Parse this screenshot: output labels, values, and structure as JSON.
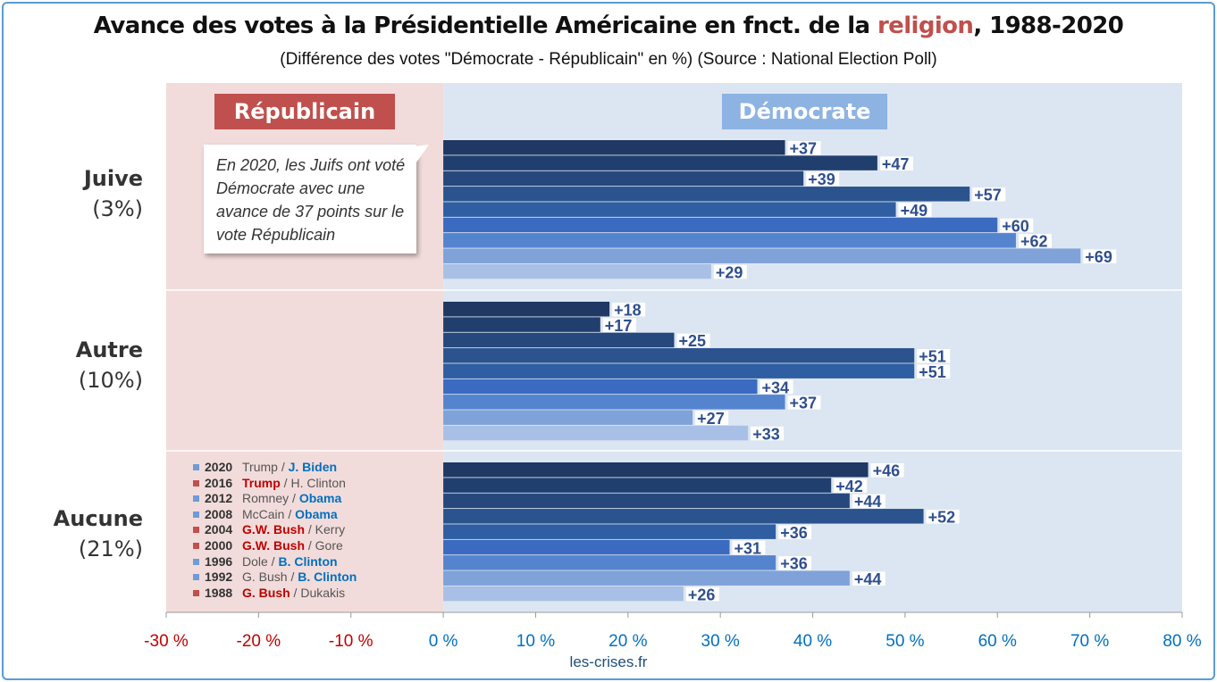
{
  "title_part1": "Avance des votes à la Présidentielle Américaine en fnct. de la ",
  "title_highlight": "religion",
  "title_part2": ", 1988-2020",
  "subtitle": "(Différence des votes \"Démocrate - Républicain\" en %) (Source : National Election Poll)",
  "tag_republicain": "Républicain",
  "tag_democrate": "Démocrate",
  "callout": "En 2020, les Juifs ont voté Démocrate avec une avance de 37 points sur le vote Républicain",
  "footer": "les-crises.fr",
  "colors": {
    "rep_bg": "#f2dcdb",
    "dem_bg": "#dce6f2",
    "rep_tag": "#c0504d",
    "dem_tag": "#8db3e2",
    "label_text": "#2f4f8f",
    "axis_neg": "#c00000",
    "axis_pos": "#0070c0",
    "bars": [
      "#1f3864",
      "#213f6e",
      "#26487c",
      "#2b538e",
      "#2f5ea2",
      "#3a6bc0",
      "#5584cf",
      "#7fa2d8",
      "#a9c0e6"
    ]
  },
  "legend": [
    {
      "year": "2020",
      "rep": "Trump",
      "dem": "J. Biden",
      "winner": "dem"
    },
    {
      "year": "2016",
      "rep": "Trump",
      "dem": "H. Clinton",
      "winner": "rep"
    },
    {
      "year": "2012",
      "rep": "Romney",
      "dem": "Obama",
      "winner": "dem"
    },
    {
      "year": "2008",
      "rep": "McCain",
      "dem": "Obama",
      "winner": "dem"
    },
    {
      "year": "2004",
      "rep": "G.W. Bush",
      "dem": "Kerry",
      "winner": "rep"
    },
    {
      "year": "2000",
      "rep": "G.W. Bush",
      "dem": "Gore",
      "winner": "rep"
    },
    {
      "year": "1996",
      "rep": "Dole",
      "dem": "B. Clinton",
      "winner": "dem"
    },
    {
      "year": "1992",
      "rep": "G. Bush",
      "dem": "B. Clinton",
      "winner": "dem"
    },
    {
      "year": "1988",
      "rep": "G. Bush",
      "dem": "Dukakis",
      "winner": "rep"
    }
  ],
  "chart_data": {
    "type": "bar",
    "orientation": "horizontal",
    "xlim": [
      -30,
      80
    ],
    "xticks": [
      -30,
      -20,
      -10,
      0,
      10,
      20,
      30,
      40,
      50,
      60,
      70,
      80
    ],
    "xtick_labels": [
      "-30 %",
      "-20 %",
      "-10 %",
      "0 %",
      "10 %",
      "20 %",
      "30 %",
      "40 %",
      "50 %",
      "60 %",
      "70 %",
      "80 %"
    ],
    "years": [
      "2020",
      "2016",
      "2012",
      "2008",
      "2004",
      "2000",
      "1996",
      "1992",
      "1988"
    ],
    "groups": [
      {
        "name": "Juive",
        "share": "(3%)",
        "values": [
          37,
          47,
          39,
          57,
          49,
          60,
          62,
          69,
          29
        ]
      },
      {
        "name": "Autre",
        "share": "(10%)",
        "values": [
          18,
          17,
          25,
          51,
          51,
          34,
          37,
          27,
          33
        ]
      },
      {
        "name": "Aucune",
        "share": "(21%)",
        "values": [
          46,
          42,
          44,
          52,
          36,
          31,
          36,
          44,
          26
        ]
      }
    ]
  }
}
